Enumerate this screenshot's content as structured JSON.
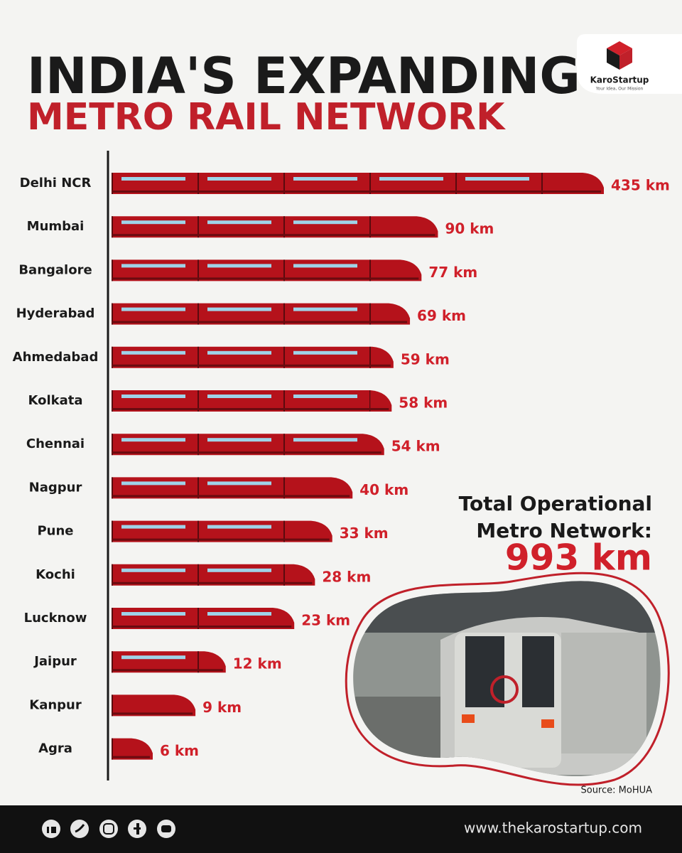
{
  "chart_data": {
    "type": "bar",
    "title": "INDIA'S EXPANDING",
    "subtitle": "METRO RAIL NETWORK",
    "categories": [
      "Delhi NCR",
      "Mumbai",
      "Bangalore",
      "Hyderabad",
      "Ahmedabad",
      "Kolkata",
      "Chennai",
      "Nagpur",
      "Pune",
      "Kochi",
      "Lucknow",
      "Jaipur",
      "Kanpur",
      "Agra"
    ],
    "values": [
      435,
      90,
      77,
      69,
      59,
      58,
      54,
      40,
      33,
      28,
      23,
      12,
      9,
      6
    ],
    "value_labels": [
      "435 km",
      "90 km",
      "77 km",
      "69 km",
      "59 km",
      "58 km",
      "54 km",
      "40 km",
      "33 km",
      "28 km",
      "23 km",
      "12 km",
      "9 km",
      "6 km"
    ],
    "color": "#b5121b",
    "xscale": "log",
    "annotation": {
      "lines": [
        "Total Operational",
        "Metro Network:"
      ],
      "value": 993,
      "value_label": "993 km"
    },
    "source": "Source: MoHUA"
  },
  "brand": {
    "name": "KaroStartup",
    "tagline": "Your Idea, Our Mission",
    "website": "www.thekarostartup.com"
  }
}
